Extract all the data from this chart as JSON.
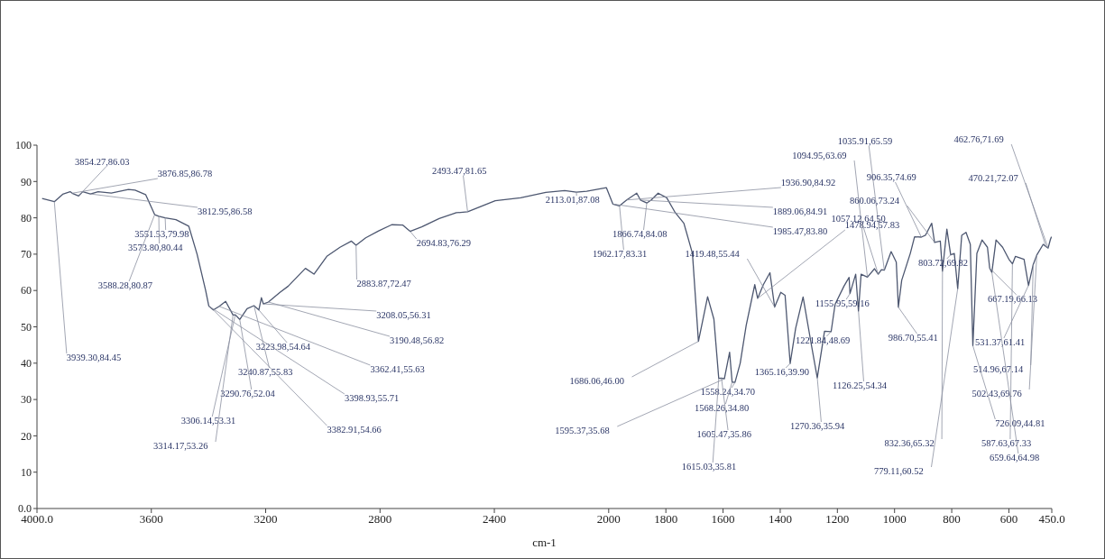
{
  "chart_data": {
    "type": "line",
    "xlabel": "cm-1",
    "color": "#4d5770",
    "x": [
      3982,
      3939.3,
      3910,
      3884,
      3876.85,
      3854.27,
      3840,
      3812.95,
      3786,
      3740,
      3680,
      3657,
      3620,
      3588.28,
      3573.8,
      3551.53,
      3514,
      3469,
      3440,
      3410,
      3398.93,
      3382.91,
      3362.41,
      3340,
      3314.17,
      3306.14,
      3290.76,
      3265,
      3240.87,
      3223.98,
      3215,
      3208.05,
      3190.48,
      3150,
      3121,
      3061,
      3031,
      2986,
      2940,
      2900,
      2883.87,
      2850,
      2805,
      2759,
      2720,
      2694.83,
      2654,
      2593,
      2533,
      2493.47,
      2458,
      2397,
      2308,
      2220,
      2154,
      2113.01,
      2077,
      2008,
      1985.47,
      1962.17,
      1936.9,
      1902,
      1889.06,
      1866.74,
      1850,
      1827,
      1797,
      1767,
      1737,
      1707,
      1686.06,
      1654,
      1632,
      1615.03,
      1605.47,
      1595.37,
      1577,
      1568.26,
      1558.24,
      1540,
      1519,
      1489,
      1478.94,
      1459,
      1436,
      1419.48,
      1398,
      1383,
      1365.16,
      1346,
      1320,
      1290,
      1270.36,
      1245,
      1221.84,
      1208,
      1177,
      1159,
      1155.95,
      1136,
      1126.25,
      1117,
      1094.95,
      1070,
      1057.12,
      1046,
      1035.91,
      1012,
      994,
      986.7,
      975,
      945,
      930,
      906.35,
      892,
      870,
      860.06,
      840,
      832.36,
      817,
      803.72,
      791,
      779.11,
      765,
      750,
      735,
      726.09,
      712,
      694,
      675,
      667.19,
      659.64,
      645,
      622,
      600,
      587.63,
      577,
      547,
      531.37,
      514.96,
      502.43,
      480,
      470.21,
      462.76,
      455,
      451
    ],
    "values": [
      85.3,
      84.45,
      86.5,
      87.2,
      86.78,
      86.03,
      87.2,
      86.58,
      87.2,
      86.8,
      87.8,
      87.6,
      86.4,
      80.87,
      80.44,
      79.98,
      79.5,
      77.7,
      70,
      60,
      55.71,
      54.66,
      55.63,
      57,
      53.26,
      53.31,
      52.04,
      55,
      55.83,
      54.64,
      58,
      56.31,
      56.82,
      59.5,
      61.2,
      66.1,
      64.5,
      69.4,
      71.9,
      73.6,
      72.47,
      74.5,
      76.4,
      78.1,
      78,
      76.29,
      77.5,
      79.8,
      81.4,
      81.65,
      82.8,
      84.7,
      85.5,
      87,
      87.5,
      87.08,
      87.3,
      88.3,
      83.8,
      83.31,
      84.92,
      86.8,
      84.91,
      84.08,
      85,
      86.8,
      85.5,
      81.4,
      78.5,
      70.2,
      46,
      58.3,
      52.1,
      35.81,
      35.86,
      35.68,
      43,
      34.8,
      34.7,
      40,
      50.4,
      61.6,
      57.83,
      61.6,
      64.9,
      55.44,
      59.5,
      58.7,
      39.9,
      49.6,
      58.2,
      44.6,
      35.94,
      48.8,
      48.69,
      56.2,
      61.2,
      63.6,
      59.16,
      64.5,
      54.34,
      64.5,
      63.69,
      66,
      64.5,
      65.7,
      65.59,
      70.7,
      67.8,
      55.41,
      62.8,
      70.2,
      74.8,
      74.69,
      75.2,
      78.5,
      73.24,
      73.6,
      65.32,
      76.9,
      69.82,
      70.2,
      60.52,
      75.2,
      76,
      72.7,
      44.81,
      70.2,
      73.9,
      71.9,
      66.13,
      64.98,
      73.9,
      71.9,
      68.6,
      67.33,
      69.4,
      68.6,
      61.41,
      67.14,
      69.76,
      72.7,
      72.07,
      71.69,
      74,
      74.8
    ],
    "xlim": [
      4000,
      450
    ],
    "xticks": [
      {
        "value": 4000,
        "label": "4000.0"
      },
      3600,
      3200,
      2800,
      2400,
      2000,
      1800,
      1600,
      1400,
      1200,
      1000,
      800,
      600,
      {
        "value": 450,
        "label": "450.0"
      }
    ],
    "ylim": [
      0,
      100
    ],
    "yticks": [
      {
        "value": 0,
        "label": "0.0"
      },
      10,
      20,
      30,
      40,
      50,
      60,
      70,
      80,
      90,
      100
    ],
    "annotations": [
      {
        "text": "3854.27,86.03",
        "x": 3854.27,
        "y": 86.03
      },
      {
        "text": "3876.85,86.78",
        "x": 3876.85,
        "y": 86.78
      },
      {
        "text": "3812.95,86.58",
        "x": 3812.95,
        "y": 86.58
      },
      {
        "text": "3551.53,79.98",
        "x": 3551.53,
        "y": 79.98
      },
      {
        "text": "3573.80,80.44",
        "x": 3573.8,
        "y": 80.44
      },
      {
        "text": "3588.28,80.87",
        "x": 3588.28,
        "y": 80.87
      },
      {
        "text": "3939.30,84.45",
        "x": 3939.3,
        "y": 84.45
      },
      {
        "text": "3223.98,54.64",
        "x": 3223.98,
        "y": 54.64
      },
      {
        "text": "3240.87,55.83",
        "x": 3240.87,
        "y": 55.83
      },
      {
        "text": "3290.76,52.04",
        "x": 3290.76,
        "y": 52.04
      },
      {
        "text": "3306.14,53.31",
        "x": 3306.14,
        "y": 53.31
      },
      {
        "text": "3314.17,53.26",
        "x": 3314.17,
        "y": 53.26
      },
      {
        "text": "3208.05,56.31",
        "x": 3208.05,
        "y": 56.31
      },
      {
        "text": "3190.48,56.82",
        "x": 3190.48,
        "y": 56.82
      },
      {
        "text": "3362.41,55.63",
        "x": 3362.41,
        "y": 55.63
      },
      {
        "text": "3398.93,55.71",
        "x": 3398.93,
        "y": 55.71
      },
      {
        "text": "3382.91,54.66",
        "x": 3382.91,
        "y": 54.66
      },
      {
        "text": "2883.87,72.47",
        "x": 2883.87,
        "y": 72.47
      },
      {
        "text": "2694.83,76.29",
        "x": 2694.83,
        "y": 76.29
      },
      {
        "text": "2493.47,81.65",
        "x": 2493.47,
        "y": 81.65
      },
      {
        "text": "2113.01,87.08",
        "x": 2113.01,
        "y": 87.08
      },
      {
        "text": "1936.90,84.92",
        "x": 1936.9,
        "y": 84.92
      },
      {
        "text": "1889.06,84.91",
        "x": 1889.06,
        "y": 84.91
      },
      {
        "text": "1985.47,83.80",
        "x": 1985.47,
        "y": 83.8
      },
      {
        "text": "1866.74,84.08",
        "x": 1866.74,
        "y": 84.08
      },
      {
        "text": "1962.17,83.31",
        "x": 1962.17,
        "y": 83.31
      },
      {
        "text": "1419.48,55.44",
        "x": 1419.48,
        "y": 55.44
      },
      {
        "text": "1478.94,57.83",
        "x": 1478.94,
        "y": 57.83
      },
      {
        "text": "1686.06,46.00",
        "x": 1686.06,
        "y": 46
      },
      {
        "text": "1595.37,35.68",
        "x": 1595.37,
        "y": 35.68
      },
      {
        "text": "1558.24,34.70",
        "x": 1558.24,
        "y": 34.7
      },
      {
        "text": "1568.26,34.80",
        "x": 1568.26,
        "y": 34.8
      },
      {
        "text": "1605.47,35.86",
        "x": 1605.47,
        "y": 35.86
      },
      {
        "text": "1615.03,35.81",
        "x": 1615.03,
        "y": 35.81
      },
      {
        "text": "1365.16,39.90",
        "x": 1365.16,
        "y": 39.9
      },
      {
        "text": "1270.36,35.94",
        "x": 1270.36,
        "y": 35.94
      },
      {
        "text": "1094.95,63.69",
        "x": 1094.95,
        "y": 63.69
      },
      {
        "text": "1035.91,65.59",
        "x": 1035.91,
        "y": 65.59
      },
      {
        "text": "906.35,74.69",
        "x": 906.35,
        "y": 74.69
      },
      {
        "text": "860.06,73.24",
        "x": 860.06,
        "y": 73.24
      },
      {
        "text": "1057.12,64.50",
        "x": 1057.12,
        "y": 64.5
      },
      {
        "text": "1155.95,59.16",
        "x": 1155.95,
        "y": 59.16
      },
      {
        "text": "1221.84,48.69",
        "x": 1221.84,
        "y": 48.69
      },
      {
        "text": "1126.25,54.34",
        "x": 1126.25,
        "y": 54.34
      },
      {
        "text": "986.70,55.41",
        "x": 986.7,
        "y": 55.41
      },
      {
        "text": "803.72,69.82",
        "x": 803.72,
        "y": 69.82
      },
      {
        "text": "832.36,65.32",
        "x": 832.36,
        "y": 65.32
      },
      {
        "text": "779.11,60.52",
        "x": 779.11,
        "y": 60.52
      },
      {
        "text": "462.76,71.69",
        "x": 462.76,
        "y": 71.69
      },
      {
        "text": "470.21,72.07",
        "x": 470.21,
        "y": 72.07
      },
      {
        "text": "667.19,66.13",
        "x": 667.19,
        "y": 66.13
      },
      {
        "text": "531.37,61.41",
        "x": 531.37,
        "y": 61.41
      },
      {
        "text": "514.96,67.14",
        "x": 514.96,
        "y": 67.14
      },
      {
        "text": "502.43,69.76",
        "x": 502.43,
        "y": 69.76
      },
      {
        "text": "726.09,44.81",
        "x": 726.09,
        "y": 44.81
      },
      {
        "text": "587.63,67.33",
        "x": 587.63,
        "y": 67.33
      },
      {
        "text": "659.64,64.98",
        "x": 659.64,
        "y": 64.98
      }
    ]
  }
}
